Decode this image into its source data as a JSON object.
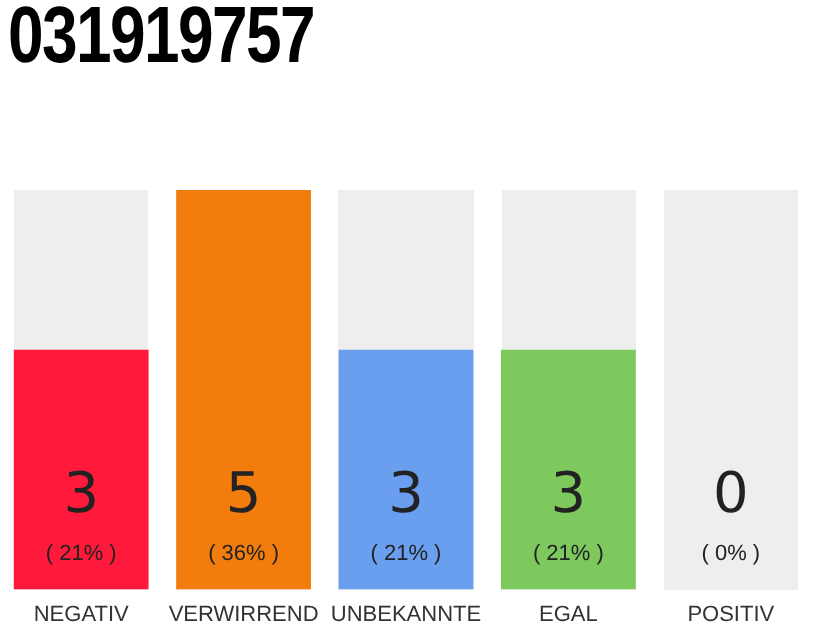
{
  "chart_data": {
    "type": "bar",
    "title": "031919757",
    "categories": [
      "NEGATIV",
      "VERWIRREND",
      "UNBEKANNTE",
      "EGAL",
      "POSITIV"
    ],
    "values": [
      3,
      5,
      3,
      3,
      0
    ],
    "colors": [
      "#ff1a3c",
      "#f27d0c",
      "#6a9ff0",
      "#7dc95e",
      "#cccccc"
    ],
    "ylim": [
      0,
      5
    ],
    "tick_labels": "x",
    "grid": false,
    "legend": false,
    "data_labels": true,
    "annotations": [
      "( 21% )",
      "( 36% )",
      "( 21% )",
      "( 21% )",
      "( 0% )"
    ]
  }
}
